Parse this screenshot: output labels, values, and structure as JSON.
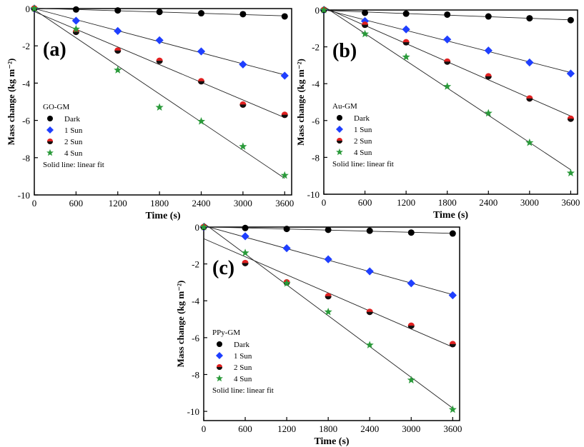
{
  "chart_data": [
    {
      "type": "scatter",
      "panel_label": "(a)",
      "legend_title": "GO-GM",
      "legend_note": "Solid line: linear fit",
      "legend_position": "bottom-left",
      "xlabel": "Time (s)",
      "ylabel": "Mass change (kg m⁻²)",
      "xlim": [
        0,
        3700
      ],
      "ylim": [
        -10,
        0
      ],
      "x_ticks": [
        "0",
        "600",
        "1200",
        "1800",
        "2400",
        "3000",
        "3600"
      ],
      "y_ticks": [
        "0",
        "-2",
        "-4",
        "-6",
        "-8",
        "-10"
      ],
      "x": [
        0,
        600,
        1200,
        1800,
        2400,
        3000,
        3600
      ],
      "series": [
        {
          "name": "Dark",
          "marker": "circle",
          "color": "#000000",
          "values": [
            0,
            -0.05,
            -0.1,
            -0.18,
            -0.25,
            -0.3,
            -0.42
          ]
        },
        {
          "name": "1 Sun",
          "marker": "diamond",
          "color": "#1f3fff",
          "values": [
            0,
            -0.65,
            -1.2,
            -1.7,
            -2.3,
            -3.0,
            -3.6
          ]
        },
        {
          "name": "2 Sun",
          "marker": "halfcircle",
          "color": "#e02020",
          "values": [
            0,
            -1.25,
            -2.25,
            -2.8,
            -3.9,
            -5.15,
            -5.7
          ]
        },
        {
          "name": "4 Sun",
          "marker": "star",
          "color": "#2a9a3a",
          "values": [
            0,
            -1.1,
            -3.3,
            -5.3,
            -6.05,
            -7.4,
            -8.95
          ]
        }
      ]
    },
    {
      "type": "scatter",
      "panel_label": "(b)",
      "legend_title": "Au-GM",
      "legend_note": "Solid line: linear fit",
      "legend_position": "bottom-left",
      "xlabel": "Time (s)",
      "ylabel": "Mass change (kg m⁻²)",
      "xlim": [
        0,
        3700
      ],
      "ylim": [
        -10,
        0
      ],
      "x_ticks": [
        "0",
        "600",
        "1200",
        "1800",
        "2400",
        "3000",
        "3600"
      ],
      "y_ticks": [
        "0",
        "-2",
        "-4",
        "-6",
        "-8",
        "-10"
      ],
      "x": [
        0,
        600,
        1200,
        1800,
        2400,
        3000,
        3600
      ],
      "series": [
        {
          "name": "Dark",
          "marker": "circle",
          "color": "#000000",
          "values": [
            0,
            -0.15,
            -0.2,
            -0.25,
            -0.35,
            -0.45,
            -0.55
          ]
        },
        {
          "name": "1 Sun",
          "marker": "diamond",
          "color": "#1f3fff",
          "values": [
            0,
            -0.6,
            -1.05,
            -1.6,
            -2.2,
            -2.85,
            -3.45
          ]
        },
        {
          "name": "2 Sun",
          "marker": "halfcircle",
          "color": "#e02020",
          "values": [
            0,
            -0.8,
            -1.75,
            -2.8,
            -3.6,
            -4.8,
            -5.9
          ]
        },
        {
          "name": "4 Sun",
          "marker": "star",
          "color": "#2a9a3a",
          "values": [
            0,
            -1.3,
            -2.55,
            -4.15,
            -5.6,
            -7.2,
            -8.85
          ]
        }
      ]
    },
    {
      "type": "scatter",
      "panel_label": "(c)",
      "legend_title": "PPy-GM",
      "legend_note": "Solid line: linear fit",
      "legend_position": "bottom-left",
      "xlabel": "Time (s)",
      "ylabel": "Mass change (kg m⁻²)",
      "xlim": [
        0,
        3700
      ],
      "ylim": [
        -10.5,
        0
      ],
      "x_ticks": [
        "0",
        "600",
        "1200",
        "1800",
        "2400",
        "3000",
        "3600"
      ],
      "y_ticks": [
        "0",
        "-2",
        "-4",
        "-6",
        "-8",
        "-10"
      ],
      "x": [
        0,
        600,
        1200,
        1800,
        2400,
        3000,
        3600
      ],
      "series": [
        {
          "name": "Dark",
          "marker": "circle",
          "color": "#000000",
          "values": [
            0,
            -0.05,
            -0.1,
            -0.15,
            -0.2,
            -0.3,
            -0.35
          ]
        },
        {
          "name": "1 Sun",
          "marker": "diamond",
          "color": "#1f3fff",
          "values": [
            0,
            -0.5,
            -1.15,
            -1.75,
            -2.4,
            -3.05,
            -3.7
          ]
        },
        {
          "name": "2 Sun",
          "marker": "halfcircle",
          "color": "#e02020",
          "values": [
            0,
            -1.95,
            -3.0,
            -3.75,
            -4.6,
            -5.35,
            -6.35
          ]
        },
        {
          "name": "4 Sun",
          "marker": "star",
          "color": "#2a9a3a",
          "values": [
            0,
            -1.4,
            -3.05,
            -4.6,
            -6.4,
            -8.3,
            -9.9
          ]
        }
      ]
    }
  ]
}
